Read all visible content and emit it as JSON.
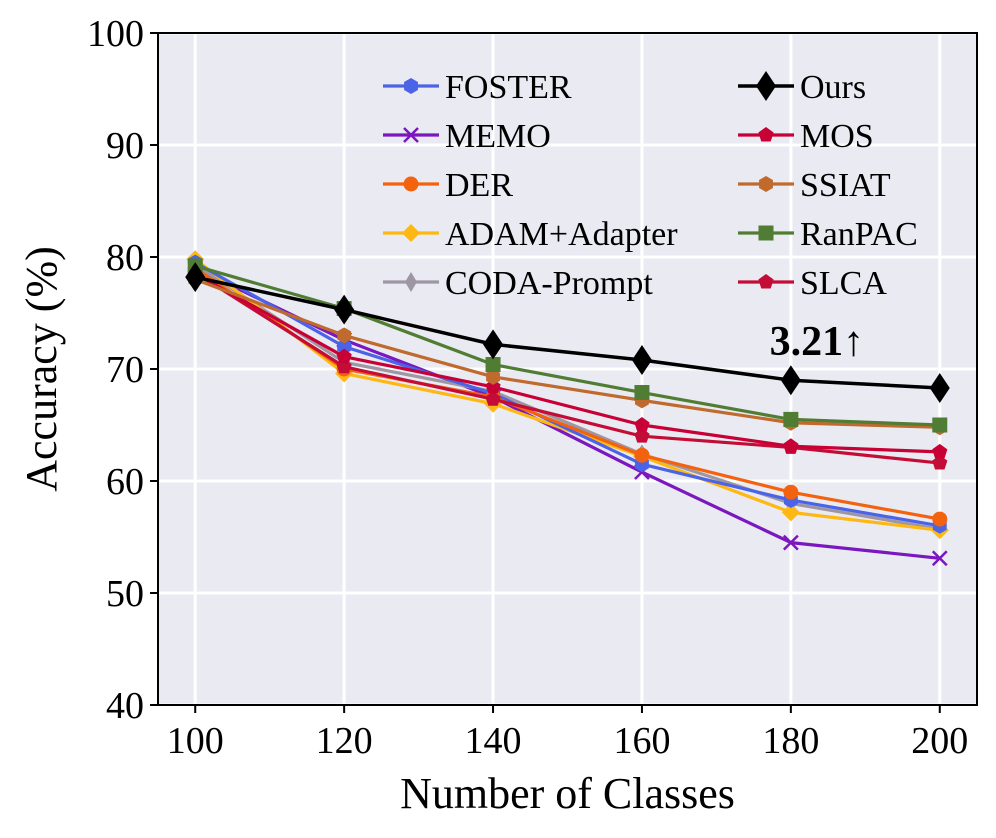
{
  "chart_data": {
    "type": "line",
    "title": "",
    "xlabel": "Number of Classes",
    "ylabel": "Accuracy (%)",
    "x": [
      100,
      120,
      140,
      160,
      180,
      200
    ],
    "xticks": [
      "100",
      "120",
      "140",
      "160",
      "180",
      "200"
    ],
    "yticks": [
      "40",
      "50",
      "60",
      "70",
      "80",
      "90",
      "100"
    ],
    "xlim": [
      95,
      205
    ],
    "ylim": [
      40,
      100
    ],
    "grid": true,
    "legend_position": "top",
    "series": [
      {
        "name": "FOSTER",
        "color": "#4a63e7",
        "marker": "hexagon",
        "values": [
          79.5,
          72.0,
          67.8,
          61.5,
          58.3,
          56.0
        ]
      },
      {
        "name": "MEMO",
        "color": "#7a17bf",
        "marker": "x",
        "values": [
          79.0,
          72.6,
          67.5,
          60.8,
          54.5,
          53.1
        ]
      },
      {
        "name": "DER",
        "color": "#f3620f",
        "marker": "circle",
        "values": [
          79.0,
          70.0,
          67.5,
          62.3,
          59.0,
          56.6
        ]
      },
      {
        "name": "ADAM+Adapter",
        "color": "#fdb813",
        "marker": "diamond",
        "values": [
          79.8,
          69.6,
          66.9,
          62.2,
          57.2,
          55.6
        ]
      },
      {
        "name": "CODA-Prompt",
        "color": "#9e97a3",
        "marker": "thin_diamond",
        "values": [
          79.3,
          70.6,
          68.0,
          62.4,
          58.0,
          55.7
        ]
      },
      {
        "name": "Ours",
        "color": "#000000",
        "marker": "big_diamond",
        "values": [
          78.2,
          75.3,
          72.2,
          70.8,
          69.0,
          68.3
        ]
      },
      {
        "name": "MOS",
        "color": "#c70035",
        "marker": "pentagon",
        "values": [
          78.5,
          71.1,
          68.4,
          65.0,
          63.1,
          62.6
        ]
      },
      {
        "name": "SSIAT",
        "color": "#c06a2e",
        "marker": "hexagon",
        "values": [
          78.0,
          73.0,
          69.3,
          67.2,
          65.2,
          64.8
        ]
      },
      {
        "name": "RanPAC",
        "color": "#507d33",
        "marker": "square",
        "values": [
          79.2,
          75.4,
          70.4,
          67.9,
          65.5,
          65.0
        ]
      },
      {
        "name": "SLCA",
        "color": "#c40d36",
        "marker": "pentagon",
        "values": [
          78.6,
          70.2,
          67.3,
          64.0,
          63.0,
          61.6
        ]
      }
    ],
    "annotations": [
      {
        "text": "3.21↑",
        "x": 183.5,
        "y": 72.5
      }
    ]
  }
}
